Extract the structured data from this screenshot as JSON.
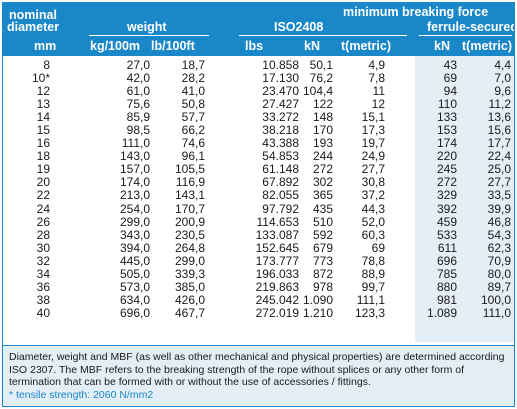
{
  "header": {
    "nominal": "nominal",
    "diameter": "diameter",
    "weight": "weight",
    "mbf": "minimum breaking force",
    "iso": "ISO2408",
    "ferrule": "ferrule-secured",
    "units": {
      "mm": "mm",
      "kg100m": "kg/100m",
      "lb100ft": "lb/100ft",
      "lbs": "lbs",
      "kn": "kN",
      "tmetric": "t(metric)",
      "kn2": "kN",
      "tmetric2": "t(metric)"
    }
  },
  "rows": [
    [
      "8",
      "27,0",
      "18,7",
      "10.858",
      "50,1",
      "4,9",
      "43",
      "4,4"
    ],
    [
      "10*",
      "42,0",
      "28,2",
      "17.130",
      "76,2",
      "7,8",
      "69",
      "7,0"
    ],
    [
      "12",
      "61,0",
      "41,0",
      "23.470",
      "104,4",
      "11",
      "94",
      "9,6"
    ],
    [
      "13",
      "75,6",
      "50,8",
      "27.427",
      "122",
      "12",
      "110",
      "11,2"
    ],
    [
      "14",
      "85,9",
      "57,7",
      "33.272",
      "148",
      "15,1",
      "133",
      "13,6"
    ],
    [
      "15",
      "98,5",
      "66,2",
      "38.218",
      "170",
      "17,3",
      "153",
      "15,6"
    ],
    [
      "16",
      "111,0",
      "74,6",
      "43.388",
      "193",
      "19,7",
      "174",
      "17,7"
    ],
    [
      "18",
      "143,0",
      "96,1",
      "54.853",
      "244",
      "24,9",
      "220",
      "22,4"
    ],
    [
      "19",
      "157,0",
      "105,5",
      "61.148",
      "272",
      "27,7",
      "245",
      "25,0"
    ],
    [
      "20",
      "174,0",
      "116,9",
      "67.892",
      "302",
      "30,8",
      "272",
      "27,7"
    ],
    [
      "22",
      "213,0",
      "143,1",
      "82.055",
      "365",
      "37,2",
      "329",
      "33,5"
    ],
    [
      "24",
      "254,0",
      "170,7",
      "97.792",
      "435",
      "44,3",
      "392",
      "39,9"
    ],
    [
      "26",
      "299,0",
      "200,9",
      "114.653",
      "510",
      "52,0",
      "459",
      "46,8"
    ],
    [
      "28",
      "343,0",
      "230,5",
      "133.087",
      "592",
      "60,3",
      "533",
      "54,3"
    ],
    [
      "30",
      "394,0",
      "264,8",
      "152.645",
      "679",
      "69",
      "611",
      "62,3"
    ],
    [
      "32",
      "445,0",
      "299,0",
      "173.777",
      "773",
      "78,8",
      "696",
      "70,9"
    ],
    [
      "34",
      "505,0",
      "339,3",
      "196.033",
      "872",
      "88,9",
      "785",
      "80,0"
    ],
    [
      "36",
      "573,0",
      "385,0",
      "219.863",
      "978",
      "99,7",
      "880",
      "89,7"
    ],
    [
      "38",
      "634,0",
      "426,0",
      "245.042",
      "1.090",
      "111,1",
      "981",
      "100,0"
    ],
    [
      "40",
      "696,0",
      "467,7",
      "272.019",
      "1.210",
      "123,3",
      "1.089",
      "111,0"
    ]
  ],
  "note": "Diameter, weight and MBF (as well as other mechanical and physical properties) are determined according ISO 2307. The MBF refers to the breaking strength of the rope without splices or any other form of termination that can be formed with or without the use of accessories / fittings.",
  "footnote": "* tensile strength: 2060 N/mm2"
}
